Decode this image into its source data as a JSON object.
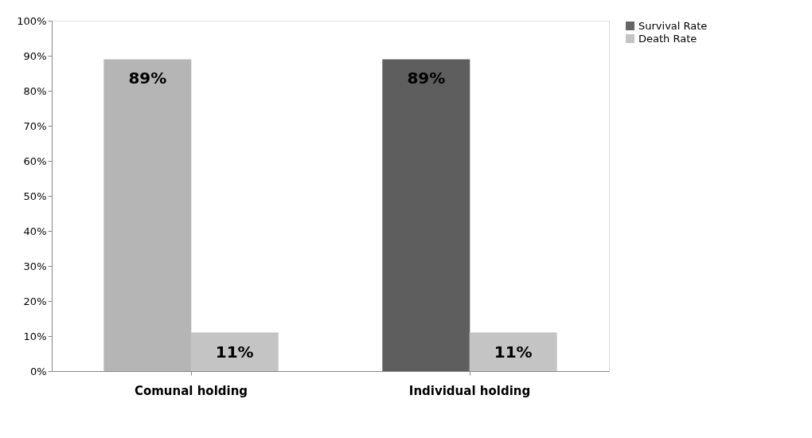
{
  "chart_data": {
    "type": "bar",
    "categories": [
      "Comunal holding",
      "Individual holding"
    ],
    "series": [
      {
        "name": "Survival Rate",
        "color": "#666666",
        "colors": [
          "#b5b5b5",
          "#5e5e5e"
        ],
        "values": [
          89,
          89
        ],
        "value_labels": [
          "89%",
          "89%"
        ]
      },
      {
        "name": "Death Rate",
        "color": "#c4c4c4",
        "colors": [
          "#c4c4c4",
          "#c4c4c4"
        ],
        "values": [
          11,
          11
        ],
        "value_labels": [
          "11%",
          "11%"
        ]
      }
    ],
    "ylim": [
      0,
      100
    ],
    "yticks": [
      {
        "value": 0,
        "label": "0%"
      },
      {
        "value": 10,
        "label": "10%"
      },
      {
        "value": 20,
        "label": "20%"
      },
      {
        "value": 30,
        "label": "30%"
      },
      {
        "value": 40,
        "label": "40%"
      },
      {
        "value": 50,
        "label": "50%"
      },
      {
        "value": 60,
        "label": "60%"
      },
      {
        "value": 70,
        "label": "70%"
      },
      {
        "value": 80,
        "label": "80%"
      },
      {
        "value": 90,
        "label": "90%"
      },
      {
        "value": 100,
        "label": "100%"
      }
    ],
    "grid": false,
    "legend": "right"
  }
}
